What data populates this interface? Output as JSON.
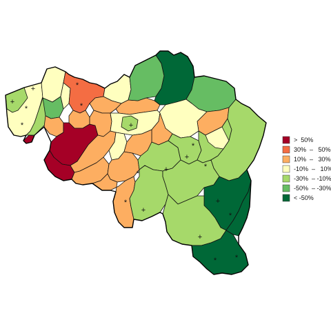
{
  "legend": {
    "items": [
      {
        "label": ">  50%",
        "color": "#a50026"
      },
      {
        "label": "30%  –   50%",
        "color": "#f46d43"
      },
      {
        "label": "10%  –   30%",
        "color": "#fdae61"
      },
      {
        "label": "-10%  –   10%",
        "color": "#ffffbf"
      },
      {
        "label": "-30%  – -10%",
        "color": "#a6d96a"
      },
      {
        "label": "-50%  – -30%",
        "color": "#66bd63"
      },
      {
        "label": "< -50%",
        "color": "#006837"
      }
    ]
  },
  "markers": {
    "plus": "+",
    "star": "*"
  }
}
